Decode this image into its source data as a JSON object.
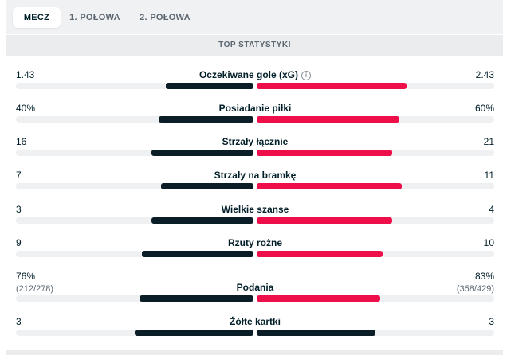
{
  "tabs": [
    {
      "label": "MECZ",
      "active": true
    },
    {
      "label": "1. POŁOWA",
      "active": false
    },
    {
      "label": "2. POŁOWA",
      "active": false
    }
  ],
  "section_title": "TOP STATYSTYKI",
  "colors": {
    "home": "#0b1d26",
    "away": "#ee0f4a",
    "track": "#eef0f2"
  },
  "stats": [
    {
      "category": "Oczekiwane gole (xG)",
      "info_icon": "info-icon",
      "home": "1.43",
      "away": "2.43",
      "home_share": 0.37,
      "away_share": 0.63
    },
    {
      "category": "Posiadanie piłki",
      "home": "40%",
      "away": "60%",
      "home_share": 0.4,
      "away_share": 0.6
    },
    {
      "category": "Strzały łącznie",
      "home": "16",
      "away": "21",
      "home_share": 0.43,
      "away_share": 0.57
    },
    {
      "category": "Strzały na bramkę",
      "home": "7",
      "away": "11",
      "home_share": 0.39,
      "away_share": 0.61
    },
    {
      "category": "Wielkie szanse",
      "home": "3",
      "away": "4",
      "home_share": 0.43,
      "away_share": 0.57
    },
    {
      "category": "Rzuty rożne",
      "home": "9",
      "away": "10",
      "home_share": 0.47,
      "away_share": 0.53
    },
    {
      "category": "Podania",
      "home": "76%",
      "away": "83%",
      "home_sub": "(212/278)",
      "away_sub": "(358/429)",
      "home_share": 0.48,
      "away_share": 0.52
    },
    {
      "category": "Żółte kartki",
      "home": "3",
      "away": "3",
      "home_share": 0.5,
      "away_share": 0.5
    }
  ]
}
